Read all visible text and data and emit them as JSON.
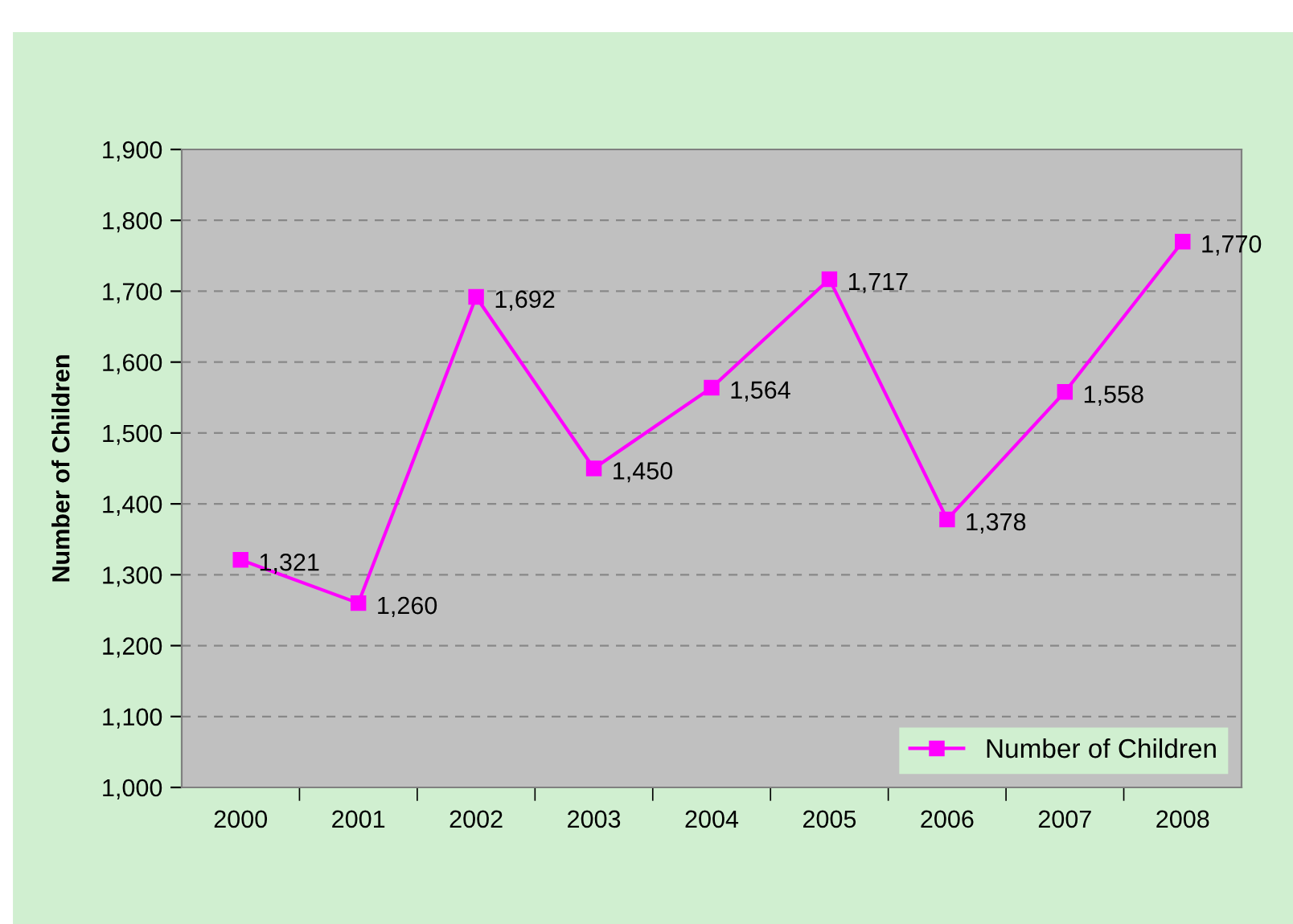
{
  "chart_data": {
    "type": "line",
    "ylabel": "Number of Children",
    "categories": [
      "2000",
      "2001",
      "2002",
      "2003",
      "2004",
      "2005",
      "2006",
      "2007",
      "2008"
    ],
    "series": [
      {
        "name": "Number of Children",
        "color": "#ff00ff",
        "values": [
          1321,
          1260,
          1692,
          1450,
          1564,
          1717,
          1378,
          1558,
          1770
        ],
        "value_labels": [
          "1,321",
          "1,260",
          "1,692",
          "1,450",
          "1,564",
          "1,717",
          "1,378",
          "1,558",
          "1,770"
        ]
      }
    ],
    "ylim": [
      1000,
      1900
    ],
    "yticks": [
      {
        "value": 1000,
        "label": "1,000"
      },
      {
        "value": 1100,
        "label": "1,100"
      },
      {
        "value": 1200,
        "label": "1,200"
      },
      {
        "value": 1300,
        "label": "1,300"
      },
      {
        "value": 1400,
        "label": "1,400"
      },
      {
        "value": 1500,
        "label": "1,500"
      },
      {
        "value": 1600,
        "label": "1,600"
      },
      {
        "value": 1700,
        "label": "1,700"
      },
      {
        "value": 1800,
        "label": "1,800"
      },
      {
        "value": 1900,
        "label": "1,900"
      }
    ],
    "grid": "y",
    "legend": "bottom right",
    "marker": "square",
    "line_style": "solid"
  }
}
